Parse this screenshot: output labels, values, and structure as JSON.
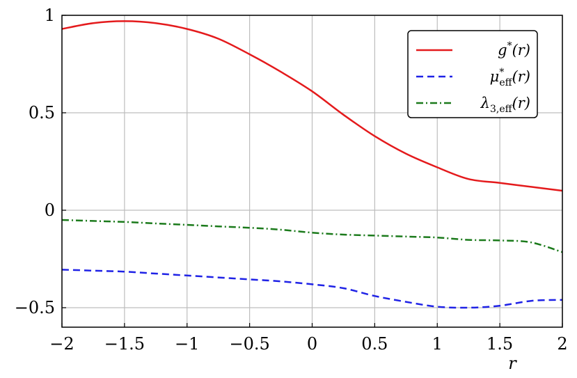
{
  "chart_data": {
    "type": "line",
    "xlabel": "r",
    "ylabel": "",
    "xlim": [
      -2,
      2
    ],
    "ylim": [
      -0.6,
      1.0
    ],
    "grid": true,
    "legend_position": "top-right",
    "x_ticks": [
      -2,
      -1.5,
      -1,
      -0.5,
      0,
      0.5,
      1,
      1.5,
      2
    ],
    "x_tick_labels": [
      "−2",
      "−1.5",
      "−1",
      "−0.5",
      "0",
      "0.5",
      "1",
      "1.5",
      "2"
    ],
    "y_ticks": [
      -0.5,
      0,
      0.5,
      1
    ],
    "y_tick_labels": [
      "−0.5",
      "0",
      "0.5",
      "1"
    ],
    "series": [
      {
        "name": "g*(r)",
        "label_main": "g",
        "label_sup": "*",
        "label_sub": "",
        "label_arg": "(r)",
        "color": "#e41a1c",
        "style": "solid",
        "x": [
          -2,
          -1.75,
          -1.5,
          -1.25,
          -1,
          -0.75,
          -0.5,
          -0.25,
          0,
          0.25,
          0.5,
          0.75,
          1,
          1.25,
          1.5,
          1.75,
          2
        ],
        "y": [
          0.93,
          0.96,
          0.97,
          0.96,
          0.93,
          0.88,
          0.8,
          0.71,
          0.61,
          0.49,
          0.38,
          0.29,
          0.22,
          0.16,
          0.14,
          0.12,
          0.1
        ]
      },
      {
        "name": "μ*eff(r)",
        "label_main": "μ",
        "label_sup": "*",
        "label_sub": "eff",
        "label_arg": "(r)",
        "color": "#1f22e6",
        "style": "dashed",
        "x": [
          -2,
          -1.75,
          -1.5,
          -1.25,
          -1,
          -0.75,
          -0.5,
          -0.25,
          0,
          0.25,
          0.5,
          0.75,
          1,
          1.25,
          1.5,
          1.75,
          2
        ],
        "y": [
          -0.305,
          -0.31,
          -0.315,
          -0.325,
          -0.335,
          -0.345,
          -0.355,
          -0.365,
          -0.38,
          -0.4,
          -0.44,
          -0.47,
          -0.495,
          -0.5,
          -0.49,
          -0.465,
          -0.46
        ]
      },
      {
        "name": "λ3,eff(r)",
        "label_main": "λ",
        "label_sup": "",
        "label_sub": "3,eff",
        "label_arg": "(r)",
        "color": "#1b7a1b",
        "style": "dashdot",
        "x": [
          -2,
          -1.75,
          -1.5,
          -1.25,
          -1,
          -0.75,
          -0.5,
          -0.25,
          0,
          0.25,
          0.5,
          0.75,
          1,
          1.25,
          1.5,
          1.75,
          2
        ],
        "y": [
          -0.05,
          -0.055,
          -0.06,
          -0.068,
          -0.075,
          -0.083,
          -0.09,
          -0.1,
          -0.115,
          -0.125,
          -0.13,
          -0.135,
          -0.14,
          -0.152,
          -0.155,
          -0.165,
          -0.215
        ]
      }
    ]
  }
}
